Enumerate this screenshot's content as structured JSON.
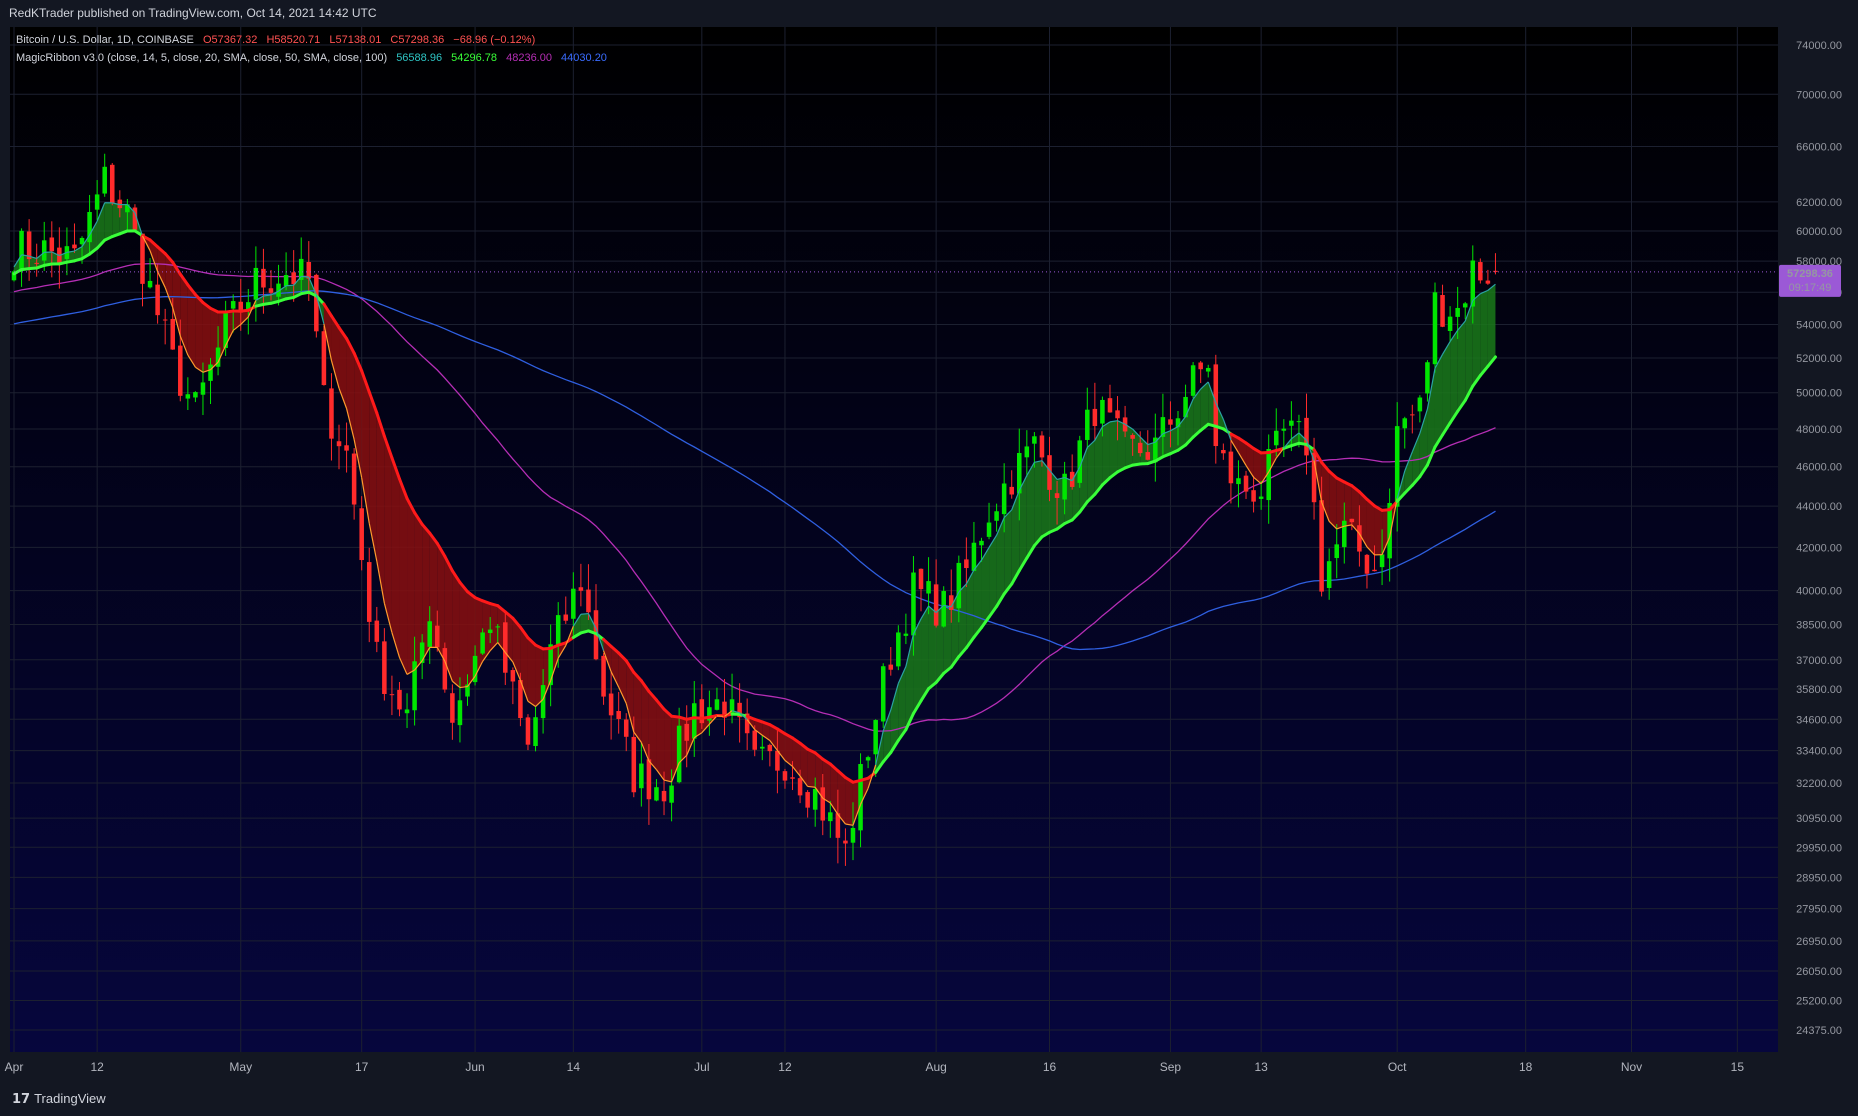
{
  "header": {
    "publisher": "RedKTrader published on TradingView.com, Oct 14, 2021 14:42 UTC"
  },
  "legend": {
    "symbol": "Bitcoin / U.S. Dollar, 1D, COINBASE",
    "open": "O57367.32",
    "high": "H58520.71",
    "low": "L57138.01",
    "close": "C57298.36",
    "change": "−68.96 (−0.12%)",
    "indicator": "MagicRibbon v3.0 (close, 14, 5, close, 20, SMA, close, 50, SMA, close, 100)",
    "v1": "56588.96",
    "v2": "54296.78",
    "v3": "48236.00",
    "v4": "44030.20"
  },
  "price_label": {
    "value": "57298.36",
    "countdown": "09:17:49"
  },
  "footer": {
    "brand": "TradingView",
    "logo_glyph": "17"
  },
  "colors": {
    "up": "#00e600",
    "down": "#ff2b2b",
    "ribbon_green": "#1a7a1a",
    "ribbon_red": "#8a0f0f",
    "bull_line": "#39ff39",
    "bear_line": "#ff1a1a",
    "sma50": "#b52eb5",
    "sma100": "#2f5fe0",
    "fast": "#ff9a2e",
    "fast_bull": "#2aa3a3",
    "label_bg": "#9b59d6"
  },
  "chart_data": {
    "type": "candlestick",
    "title": "Bitcoin / U.S. Dollar, 1D, COINBASE",
    "y_axis": {
      "scale": "log",
      "range": [
        24375,
        74000
      ],
      "ticks": [
        74000,
        70000,
        66000,
        62000,
        60000,
        58000,
        56000,
        54000,
        52000,
        50000,
        48000,
        46000,
        44000,
        42000,
        40000,
        38500,
        37000,
        35800,
        34600,
        33400,
        32200,
        30950,
        29950,
        28950,
        27950,
        26950,
        26050,
        25200,
        24375
      ],
      "tick_labels": [
        "74000.00",
        "70000.00",
        "66000.00",
        "62000.00",
        "60000.00",
        "58000.00",
        "56000.00",
        "54000.00",
        "52000.00",
        "50000.00",
        "48000.00",
        "46000.00",
        "44000.00",
        "42000.00",
        "40000.00",
        "38500.00",
        "37000.00",
        "35800.00",
        "34600.00",
        "33400.00",
        "32200.00",
        "30950.00",
        "29950.00",
        "28950.00",
        "27950.00",
        "26950.00",
        "26050.00",
        "25200.00",
        "24375.00"
      ]
    },
    "x_axis": {
      "range": [
        "2021-04-01",
        "2021-11-18"
      ],
      "ticks": [
        {
          "date": "2021-04-01",
          "label": "Apr"
        },
        {
          "date": "2021-04-12",
          "label": "12"
        },
        {
          "date": "2021-05-01",
          "label": "May"
        },
        {
          "date": "2021-05-17",
          "label": "17"
        },
        {
          "date": "2021-06-01",
          "label": "Jun"
        },
        {
          "date": "2021-06-14",
          "label": "14"
        },
        {
          "date": "2021-07-01",
          "label": "Jul"
        },
        {
          "date": "2021-07-12",
          "label": "12"
        },
        {
          "date": "2021-08-01",
          "label": "Aug"
        },
        {
          "date": "2021-08-16",
          "label": "16"
        },
        {
          "date": "2021-09-01",
          "label": "Sep"
        },
        {
          "date": "2021-09-13",
          "label": "13"
        },
        {
          "date": "2021-10-01",
          "label": "Oct"
        },
        {
          "date": "2021-10-18",
          "label": "18"
        },
        {
          "date": "2021-11-01",
          "label": "Nov"
        },
        {
          "date": "2021-11-15",
          "label": "15"
        }
      ]
    },
    "last_price": 57298.36,
    "close_anchors": [
      [
        "2021-04-01",
        58800
      ],
      [
        "2021-04-05",
        58700
      ],
      [
        "2021-04-09",
        58100
      ],
      [
        "2021-04-13",
        63500
      ],
      [
        "2021-04-16",
        61200
      ],
      [
        "2021-04-19",
        56200
      ],
      [
        "2021-04-22",
        51700
      ],
      [
        "2021-04-25",
        49000
      ],
      [
        "2021-04-29",
        53600
      ],
      [
        "2021-05-03",
        56600
      ],
      [
        "2021-05-07",
        57300
      ],
      [
        "2021-05-10",
        56700
      ],
      [
        "2021-05-12",
        49500
      ],
      [
        "2021-05-15",
        46700
      ],
      [
        "2021-05-19",
        37000
      ],
      [
        "2021-05-23",
        34700
      ],
      [
        "2021-05-26",
        39300
      ],
      [
        "2021-05-29",
        34700
      ],
      [
        "2021-06-03",
        38800
      ],
      [
        "2021-06-08",
        33400
      ],
      [
        "2021-06-11",
        37300
      ],
      [
        "2021-06-15",
        40500
      ],
      [
        "2021-06-18",
        35800
      ],
      [
        "2021-06-22",
        32500
      ],
      [
        "2021-06-26",
        32100
      ],
      [
        "2021-06-30",
        35000
      ],
      [
        "2021-07-04",
        35300
      ],
      [
        "2021-07-08",
        32800
      ],
      [
        "2021-07-12",
        33100
      ],
      [
        "2021-07-16",
        31800
      ],
      [
        "2021-07-20",
        29800
      ],
      [
        "2021-07-23",
        33600
      ],
      [
        "2021-07-26",
        37300
      ],
      [
        "2021-07-29",
        40000
      ],
      [
        "2021-08-02",
        39200
      ],
      [
        "2021-08-05",
        40900
      ],
      [
        "2021-08-08",
        43800
      ],
      [
        "2021-08-11",
        45600
      ],
      [
        "2021-08-14",
        47100
      ],
      [
        "2021-08-18",
        44700
      ],
      [
        "2021-08-22",
        49300
      ],
      [
        "2021-08-26",
        46800
      ],
      [
        "2021-08-30",
        47000
      ],
      [
        "2021-09-03",
        50000
      ],
      [
        "2021-09-06",
        51800
      ],
      [
        "2021-09-07",
        46800
      ],
      [
        "2021-09-10",
        44900
      ],
      [
        "2021-09-13",
        44900
      ],
      [
        "2021-09-16",
        47700
      ],
      [
        "2021-09-19",
        47300
      ],
      [
        "2021-09-21",
        40700
      ],
      [
        "2021-09-24",
        42700
      ],
      [
        "2021-09-28",
        41000
      ],
      [
        "2021-09-30",
        43800
      ],
      [
        "2021-10-01",
        48100
      ],
      [
        "2021-10-04",
        49100
      ],
      [
        "2021-10-06",
        55300
      ],
      [
        "2021-10-09",
        54900
      ],
      [
        "2021-10-11",
        57400
      ],
      [
        "2021-10-13",
        57300
      ],
      [
        "2021-10-14",
        57298.36
      ]
    ],
    "series": [
      {
        "name": "MagicRibbon fast",
        "last": 56588.96
      },
      {
        "name": "MagicRibbon slow",
        "last": 54296.78
      },
      {
        "name": "SMA 50",
        "last": 48236.0
      },
      {
        "name": "SMA 100",
        "last": 44030.2
      }
    ]
  }
}
